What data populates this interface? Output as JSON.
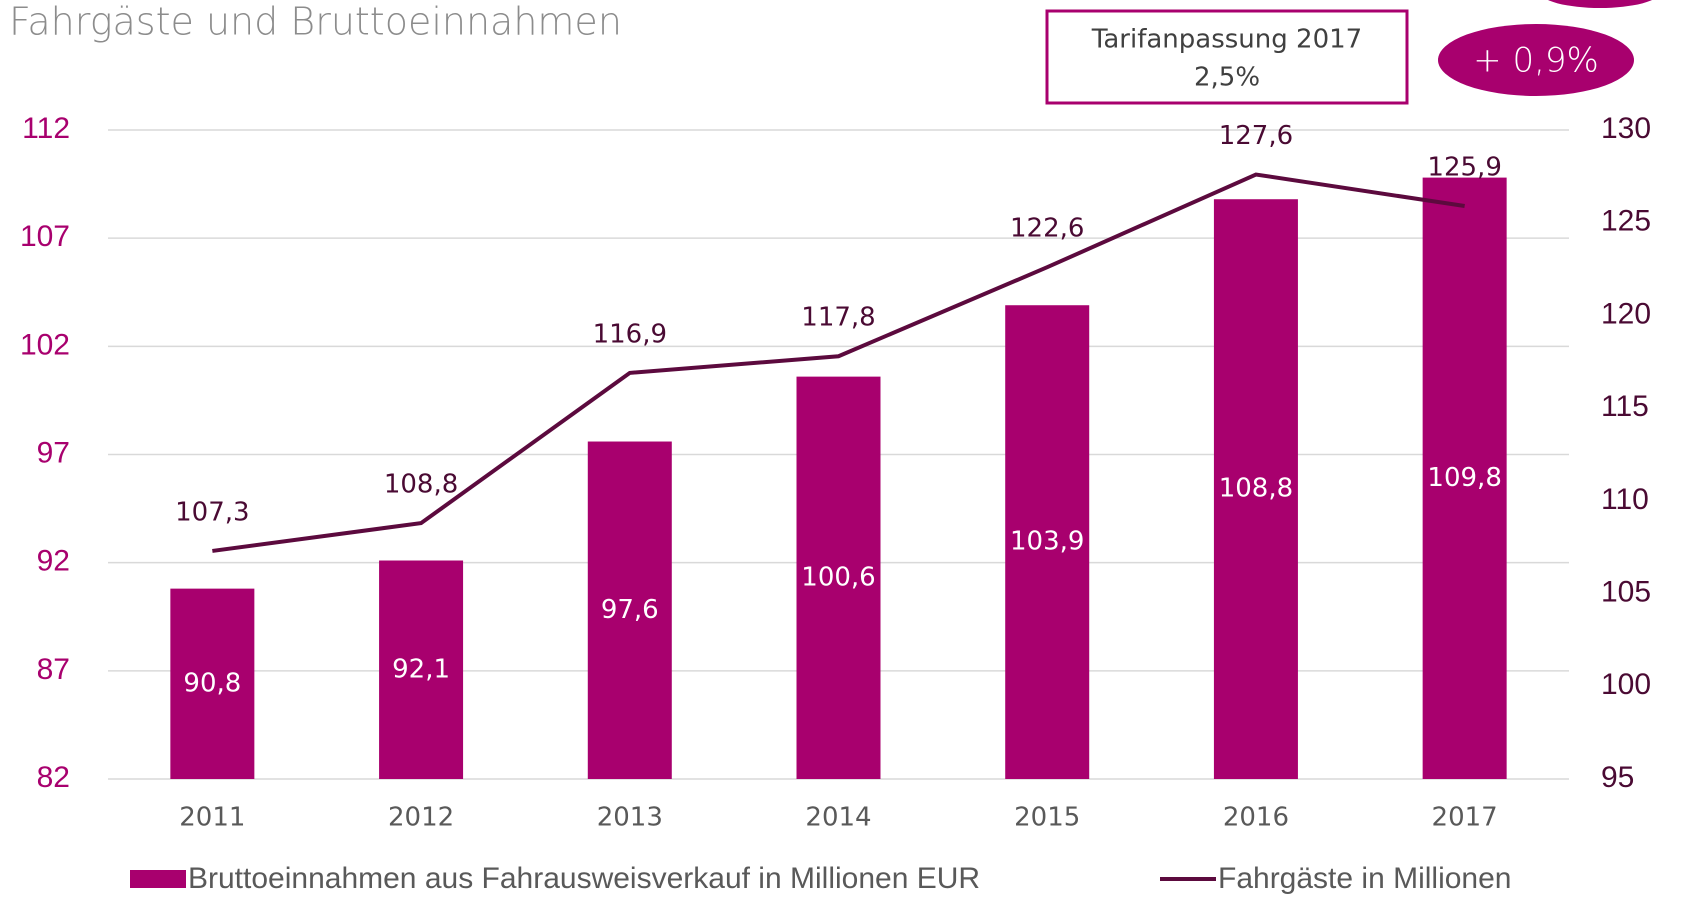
{
  "chart_data": {
    "type": "bar",
    "title": "Fahrgäste und Bruttoeinnahmen",
    "categories": [
      "2011",
      "2012",
      "2013",
      "2014",
      "2015",
      "2016",
      "2017"
    ],
    "series": [
      {
        "name": "Bruttoeinnahmen aus Fahrausweisverkauf in Millionen EUR",
        "type": "bar",
        "axis": "y",
        "color": "#a8006e",
        "values": [
          90.8,
          92.1,
          97.6,
          100.6,
          103.9,
          108.8,
          109.8
        ],
        "value_labels": [
          "90,8",
          "92,1",
          "97,6",
          "100,6",
          "103,9",
          "108,8",
          "109,8"
        ]
      },
      {
        "name": "Fahrgäste in Millionen",
        "type": "line",
        "axis": "y2",
        "color": "#5c0a3e",
        "values": [
          107.3,
          108.8,
          116.9,
          117.8,
          122.6,
          127.6,
          125.9
        ],
        "value_labels": [
          "107,3",
          "108,8",
          "116,9",
          "117,8",
          "122,6",
          "127,6",
          "125,9"
        ]
      }
    ],
    "ylim": [
      82,
      112
    ],
    "yticks": [
      82,
      87,
      92,
      97,
      102,
      107,
      112
    ],
    "y2lim": [
      95,
      130
    ],
    "y2ticks": [
      95,
      100,
      105,
      110,
      115,
      120,
      125,
      130
    ],
    "grid": true,
    "legend": "bottom",
    "annotation_box": {
      "title": "Tarifanpassung 2017",
      "value": "2,5%"
    },
    "badge": "+ 0,9%"
  }
}
